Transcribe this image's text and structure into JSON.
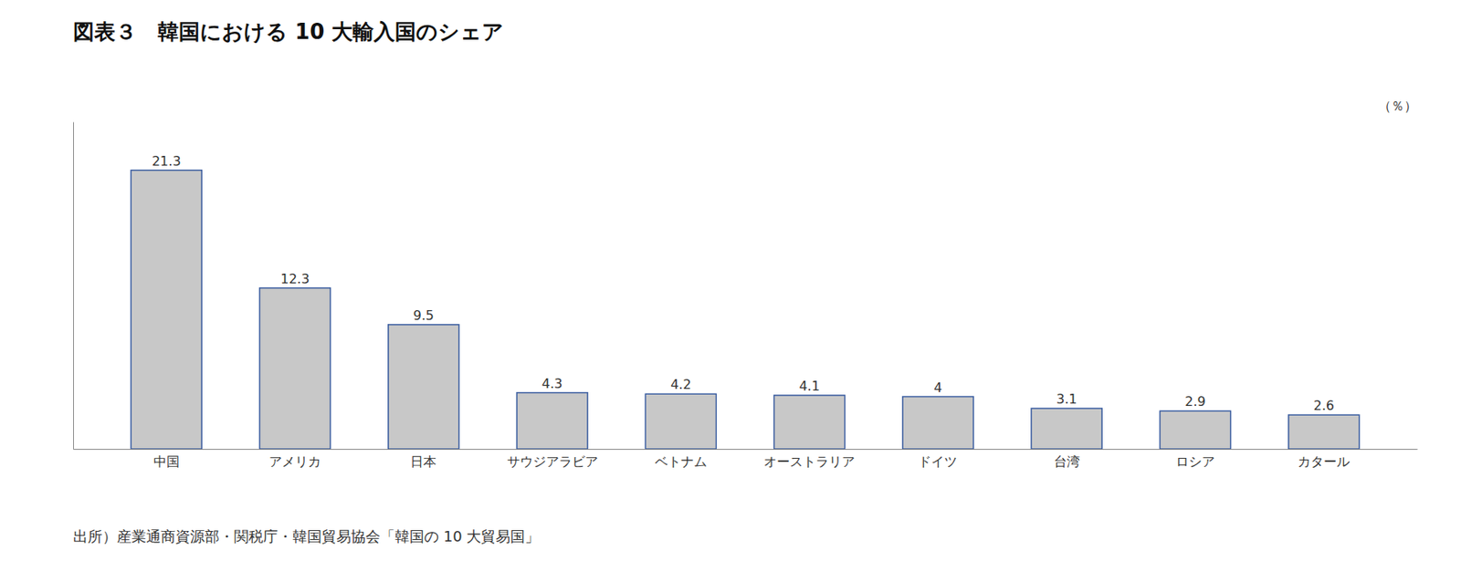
{
  "chart_data": {
    "type": "bar",
    "title": "図表３　韓国における 10 大輸入国のシェア",
    "ylabel": "（％）",
    "source": "出所）産業通商資源部・関税庁・韓国貿易協会「韓国の 10 大貿易国」",
    "categories": [
      "中国",
      "アメリカ",
      "日本",
      "サウジアラビア",
      "ベトナム",
      "オーストラリア",
      "ドイツ",
      "台湾",
      "ロシア",
      "カタール"
    ],
    "values": [
      21.3,
      12.3,
      9.5,
      4.3,
      4.2,
      4.1,
      4.0,
      3.1,
      2.9,
      2.6
    ],
    "value_labels": [
      "21.3",
      "12.3",
      "9.5",
      "4.3",
      "4.2",
      "4.1",
      "4",
      "3.1",
      "2.9",
      "2.6"
    ],
    "color": "#C8C8C8",
    "ylim": [
      0,
      25
    ],
    "grid": false,
    "data_labels": true,
    "tick_labels": "x"
  }
}
